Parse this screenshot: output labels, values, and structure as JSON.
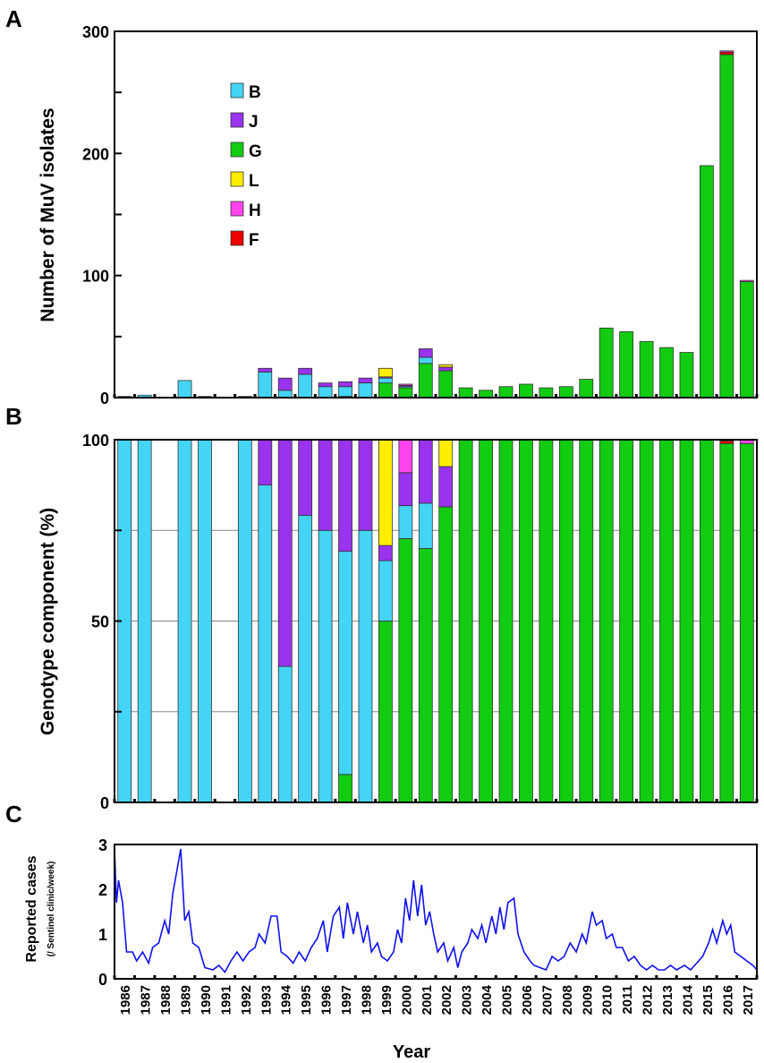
{
  "chart_data": [
    {
      "panel": "A",
      "type": "bar",
      "stacked": true,
      "ylabel": "Number of MuV isolates",
      "ylim": [
        0,
        300
      ],
      "yticks": [
        0,
        100,
        200,
        300
      ],
      "categories": [
        "1986",
        "1987",
        "1988",
        "1989",
        "1990",
        "1991",
        "1992",
        "1993",
        "1994",
        "1995",
        "1996",
        "1997",
        "1998",
        "1999",
        "2000",
        "2001",
        "2002",
        "2003",
        "2004",
        "2005",
        "2006",
        "2007",
        "2008",
        "2009",
        "2010",
        "2011",
        "2012",
        "2013",
        "2014",
        "2015",
        "2016",
        "2017"
      ],
      "legend": [
        "B",
        "J",
        "G",
        "L",
        "H",
        "F"
      ],
      "legend_position": "top-left",
      "series": [
        {
          "name": "G",
          "color": "#11cc11",
          "values": [
            0,
            0,
            0,
            0,
            0,
            0,
            0,
            0,
            0,
            0,
            0,
            1,
            0,
            12,
            8,
            28,
            22,
            8,
            6,
            9,
            11,
            8,
            9,
            15,
            57,
            54,
            46,
            41,
            37,
            190,
            281,
            95
          ]
        },
        {
          "name": "B",
          "color": "#44d4f5",
          "values": [
            1,
            2,
            0,
            14,
            1,
            0,
            1,
            21,
            6,
            19,
            9,
            8,
            12,
            4,
            1,
            5,
            0,
            0,
            0,
            0,
            0,
            0,
            0,
            0,
            0,
            0,
            0,
            0,
            0,
            0,
            0,
            0
          ]
        },
        {
          "name": "J",
          "color": "#9933ee",
          "values": [
            0,
            0,
            0,
            0,
            0,
            0,
            0,
            3,
            10,
            5,
            3,
            4,
            4,
            1,
            1,
            7,
            3,
            0,
            0,
            0,
            0,
            0,
            0,
            0,
            0,
            0,
            0,
            0,
            0,
            0,
            0,
            0
          ]
        },
        {
          "name": "L",
          "color": "#ffee00",
          "values": [
            0,
            0,
            0,
            0,
            0,
            0,
            0,
            0,
            0,
            0,
            0,
            0,
            0,
            7,
            0,
            0,
            2,
            0,
            0,
            0,
            0,
            0,
            0,
            0,
            0,
            0,
            0,
            0,
            0,
            0,
            0,
            0
          ]
        },
        {
          "name": "F",
          "color": "#ee0000",
          "values": [
            0,
            0,
            0,
            0,
            0,
            0,
            0,
            0,
            0,
            0,
            0,
            0,
            0,
            0,
            0,
            0,
            0,
            0,
            0,
            0,
            0,
            0,
            0,
            0,
            0,
            0,
            0,
            0,
            0,
            0,
            2,
            0
          ]
        },
        {
          "name": "H",
          "color": "#ff44ee",
          "values": [
            0,
            0,
            0,
            0,
            0,
            0,
            0,
            0,
            0,
            0,
            0,
            0,
            0,
            0,
            1,
            0,
            0,
            0,
            0,
            0,
            0,
            0,
            0,
            0,
            0,
            0,
            0,
            0,
            0,
            0,
            1,
            1
          ]
        }
      ]
    },
    {
      "panel": "B",
      "type": "bar",
      "stacked": true,
      "normalized": true,
      "ylabel": "Genotype component (%)",
      "ylim": [
        0,
        100
      ],
      "yticks": [
        0,
        50,
        100
      ],
      "gridlines": [
        25,
        50,
        75
      ],
      "note": "percent of panel A totals per year"
    },
    {
      "panel": "C",
      "type": "line",
      "ylabel": "Reported cases",
      "ylabel_sub": "(/ Sentinel clinic/week)",
      "xlabel": "Year",
      "ylim": [
        0,
        3
      ],
      "yticks": [
        0,
        1,
        2,
        3
      ],
      "xlim": [
        1986,
        2018
      ],
      "color": "#1010ee",
      "points": [
        [
          1986.0,
          2.9
        ],
        [
          1986.1,
          1.7
        ],
        [
          1986.2,
          2.2
        ],
        [
          1986.4,
          1.7
        ],
        [
          1986.6,
          0.6
        ],
        [
          1986.9,
          0.6
        ],
        [
          1987.1,
          0.4
        ],
        [
          1987.4,
          0.6
        ],
        [
          1987.7,
          0.35
        ],
        [
          1987.9,
          0.7
        ],
        [
          1988.2,
          0.8
        ],
        [
          1988.5,
          1.3
        ],
        [
          1988.7,
          1.0
        ],
        [
          1988.9,
          1.9
        ],
        [
          1989.1,
          2.4
        ],
        [
          1989.3,
          2.9
        ],
        [
          1989.5,
          1.3
        ],
        [
          1989.7,
          1.5
        ],
        [
          1989.9,
          0.8
        ],
        [
          1990.2,
          0.7
        ],
        [
          1990.5,
          0.25
        ],
        [
          1990.9,
          0.2
        ],
        [
          1991.2,
          0.3
        ],
        [
          1991.5,
          0.15
        ],
        [
          1991.8,
          0.4
        ],
        [
          1992.1,
          0.6
        ],
        [
          1992.4,
          0.4
        ],
        [
          1992.7,
          0.6
        ],
        [
          1993.0,
          0.7
        ],
        [
          1993.2,
          1.0
        ],
        [
          1993.5,
          0.8
        ],
        [
          1993.8,
          1.4
        ],
        [
          1994.1,
          1.4
        ],
        [
          1994.3,
          0.6
        ],
        [
          1994.6,
          0.5
        ],
        [
          1994.9,
          0.35
        ],
        [
          1995.2,
          0.6
        ],
        [
          1995.5,
          0.4
        ],
        [
          1995.8,
          0.7
        ],
        [
          1996.1,
          0.9
        ],
        [
          1996.4,
          1.3
        ],
        [
          1996.6,
          0.6
        ],
        [
          1996.9,
          1.4
        ],
        [
          1997.2,
          1.6
        ],
        [
          1997.4,
          0.9
        ],
        [
          1997.6,
          1.7
        ],
        [
          1997.9,
          1.0
        ],
        [
          1998.1,
          1.5
        ],
        [
          1998.4,
          0.8
        ],
        [
          1998.6,
          1.2
        ],
        [
          1998.8,
          0.6
        ],
        [
          1999.1,
          0.8
        ],
        [
          1999.3,
          0.5
        ],
        [
          1999.6,
          0.4
        ],
        [
          1999.9,
          0.6
        ],
        [
          2000.1,
          1.1
        ],
        [
          2000.3,
          0.8
        ],
        [
          2000.5,
          1.8
        ],
        [
          2000.7,
          1.3
        ],
        [
          2000.9,
          2.2
        ],
        [
          2001.1,
          1.4
        ],
        [
          2001.3,
          2.1
        ],
        [
          2001.5,
          1.2
        ],
        [
          2001.7,
          1.5
        ],
        [
          2001.9,
          1.0
        ],
        [
          2002.1,
          0.6
        ],
        [
          2002.4,
          0.8
        ],
        [
          2002.6,
          0.4
        ],
        [
          2002.9,
          0.7
        ],
        [
          2003.1,
          0.25
        ],
        [
          2003.3,
          0.6
        ],
        [
          2003.6,
          0.8
        ],
        [
          2003.8,
          1.1
        ],
        [
          2004.1,
          0.9
        ],
        [
          2004.3,
          1.2
        ],
        [
          2004.5,
          0.8
        ],
        [
          2004.8,
          1.4
        ],
        [
          2005.0,
          1.0
        ],
        [
          2005.2,
          1.6
        ],
        [
          2005.4,
          1.1
        ],
        [
          2005.6,
          1.7
        ],
        [
          2005.9,
          1.8
        ],
        [
          2006.1,
          1.0
        ],
        [
          2006.4,
          0.6
        ],
        [
          2006.7,
          0.4
        ],
        [
          2006.9,
          0.3
        ],
        [
          2007.2,
          0.25
        ],
        [
          2007.5,
          0.2
        ],
        [
          2007.8,
          0.5
        ],
        [
          2008.1,
          0.4
        ],
        [
          2008.4,
          0.5
        ],
        [
          2008.7,
          0.8
        ],
        [
          2009.0,
          0.6
        ],
        [
          2009.3,
          1.0
        ],
        [
          2009.5,
          0.8
        ],
        [
          2009.8,
          1.5
        ],
        [
          2010.0,
          1.2
        ],
        [
          2010.3,
          1.3
        ],
        [
          2010.5,
          0.9
        ],
        [
          2010.8,
          1.0
        ],
        [
          2011.0,
          0.7
        ],
        [
          2011.3,
          0.7
        ],
        [
          2011.6,
          0.4
        ],
        [
          2011.9,
          0.5
        ],
        [
          2012.2,
          0.3
        ],
        [
          2012.5,
          0.2
        ],
        [
          2012.8,
          0.3
        ],
        [
          2013.1,
          0.2
        ],
        [
          2013.4,
          0.2
        ],
        [
          2013.7,
          0.3
        ],
        [
          2014.0,
          0.2
        ],
        [
          2014.4,
          0.3
        ],
        [
          2014.7,
          0.2
        ],
        [
          2015.0,
          0.35
        ],
        [
          2015.3,
          0.5
        ],
        [
          2015.6,
          0.8
        ],
        [
          2015.8,
          1.1
        ],
        [
          2016.0,
          0.8
        ],
        [
          2016.3,
          1.3
        ],
        [
          2016.5,
          1.0
        ],
        [
          2016.7,
          1.2
        ],
        [
          2016.9,
          0.6
        ],
        [
          2017.2,
          0.5
        ],
        [
          2017.5,
          0.4
        ],
        [
          2017.8,
          0.3
        ],
        [
          2018.0,
          0.2
        ]
      ]
    }
  ],
  "panel_labels": [
    "A",
    "B",
    "C"
  ]
}
